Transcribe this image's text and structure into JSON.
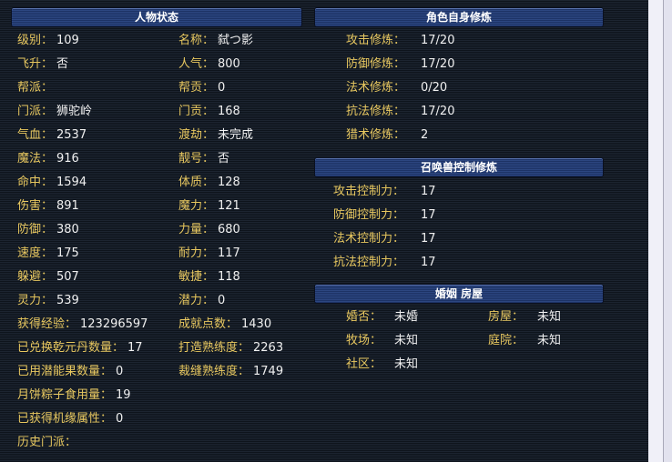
{
  "status": {
    "title": "人物状态",
    "col1": [
      {
        "label": "级别：",
        "value": "109"
      },
      {
        "label": "飞升：",
        "value": "否"
      },
      {
        "label": "帮派：",
        "value": ""
      },
      {
        "label": "门派：",
        "value": "狮驼岭"
      },
      {
        "label": "气血：",
        "value": "2537"
      },
      {
        "label": "魔法：",
        "value": "916"
      },
      {
        "label": "命中：",
        "value": "1594"
      },
      {
        "label": "伤害：",
        "value": "891"
      },
      {
        "label": "防御：",
        "value": "380"
      },
      {
        "label": "速度：",
        "value": "175"
      },
      {
        "label": "躲避：",
        "value": "507"
      },
      {
        "label": "灵力：",
        "value": "539"
      },
      {
        "label": "获得经验：",
        "value": "123296597"
      },
      {
        "label": "已兑换乾元丹数量：",
        "value": "17"
      },
      {
        "label": "已用潜能果数量：",
        "value": "0"
      },
      {
        "label": "月饼粽子食用量：",
        "value": "19"
      },
      {
        "label": "已获得机缘属性：",
        "value": "0"
      },
      {
        "label": "历史门派：",
        "value": ""
      }
    ],
    "col2": [
      {
        "label": "名称：",
        "value": "弑つ影"
      },
      {
        "label": "人气：",
        "value": "800"
      },
      {
        "label": "帮贡：",
        "value": "0"
      },
      {
        "label": "门贡：",
        "value": "168"
      },
      {
        "label": "渡劫：",
        "value": "未完成"
      },
      {
        "label": "靓号：",
        "value": "否"
      },
      {
        "label": "体质：",
        "value": "128"
      },
      {
        "label": "魔力：",
        "value": "121"
      },
      {
        "label": "力量：",
        "value": "680"
      },
      {
        "label": "耐力：",
        "value": "117"
      },
      {
        "label": "敏捷：",
        "value": "118"
      },
      {
        "label": "潜力：",
        "value": "0"
      },
      {
        "label": "成就点数：",
        "value": "1430"
      },
      {
        "label": "打造熟练度：",
        "value": "2263"
      },
      {
        "label": "裁缝熟练度：",
        "value": "1749"
      }
    ]
  },
  "cultivation": {
    "title": "角色自身修炼",
    "rows": [
      {
        "label": "攻击修炼：",
        "value": "17/20"
      },
      {
        "label": "防御修炼：",
        "value": "17/20"
      },
      {
        "label": "法术修炼：",
        "value": "0/20"
      },
      {
        "label": "抗法修炼：",
        "value": "17/20"
      },
      {
        "label": "猎术修炼：",
        "value": "2"
      }
    ]
  },
  "pet_control": {
    "title": "召唤兽控制修炼",
    "rows": [
      {
        "label": "攻击控制力：",
        "value": "17"
      },
      {
        "label": "防御控制力：",
        "value": "17"
      },
      {
        "label": "法术控制力：",
        "value": "17"
      },
      {
        "label": "抗法控制力：",
        "value": "17"
      }
    ]
  },
  "marriage": {
    "title": "婚姻 房屋",
    "col1": [
      {
        "label": "婚否：",
        "value": "未婚"
      },
      {
        "label": "牧场：",
        "value": "未知"
      },
      {
        "label": "社区：",
        "value": "未知"
      }
    ],
    "col2": [
      {
        "label": "房屋：",
        "value": "未知"
      },
      {
        "label": "庭院：",
        "value": "未知"
      }
    ]
  }
}
